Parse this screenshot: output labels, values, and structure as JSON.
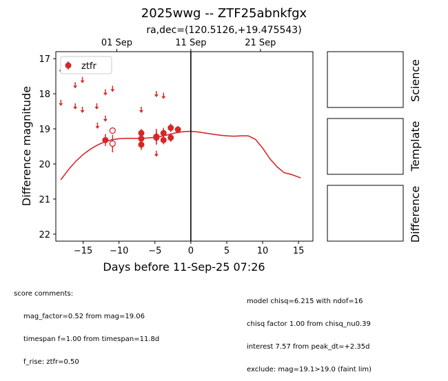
{
  "page_title": "2025wwg -- ZTF25abnkfgx",
  "page_subtitle": "ra,dec=(120.5126,+19.475543)",
  "chart_data": {
    "type": "scatter",
    "xlabel": "Days before 11-Sep-25 07:26",
    "ylabel": "Difference magnitude",
    "xlim": [
      -18.8,
      17.0
    ],
    "ylim": [
      22.2,
      16.8
    ],
    "y_inverted": true,
    "x_ticks": [
      -15,
      -10,
      -5,
      0,
      5,
      10,
      15
    ],
    "x_tick_labels": [
      "−15",
      "−10",
      "−5",
      "0",
      "5",
      "10",
      "15"
    ],
    "y_ticks": [
      17,
      18,
      19,
      20,
      21,
      22
    ],
    "y_tick_labels": [
      "17",
      "18",
      "19",
      "20",
      "21",
      "22"
    ],
    "top_axis": {
      "ticks": [
        -10.31,
        0.0,
        9.69
      ],
      "labels": [
        "01 Sep",
        "11 Sep",
        "21 Sep"
      ]
    },
    "reference_line_x": 0,
    "legend": {
      "placement": "top-left",
      "entries": [
        {
          "name": "ztfr",
          "color": "#d62728"
        }
      ]
    },
    "series_color": "#d62728",
    "detections": [
      {
        "x": -11.9,
        "y": 19.32,
        "err": 0.17
      },
      {
        "x": -6.9,
        "y": 19.12,
        "err": 0.12
      },
      {
        "x": -6.9,
        "y": 19.28,
        "err": 0.12
      },
      {
        "x": -6.9,
        "y": 19.45,
        "err": 0.15
      },
      {
        "x": -4.8,
        "y": 19.22,
        "err": 0.22
      },
      {
        "x": -4.8,
        "y": 19.25,
        "err": 0.2
      },
      {
        "x": -3.8,
        "y": 19.12,
        "err": 0.15
      },
      {
        "x": -3.8,
        "y": 19.32,
        "err": 0.12
      },
      {
        "x": -2.8,
        "y": 18.97,
        "err": 0.12
      },
      {
        "x": -2.8,
        "y": 19.25,
        "err": 0.12
      },
      {
        "x": -1.8,
        "y": 19.02,
        "err": 0.1
      }
    ],
    "open_points": [
      {
        "x": -10.9,
        "y": 19.05,
        "err": 0.0
      },
      {
        "x": -10.9,
        "y": 19.42,
        "err": 0.25
      }
    ],
    "upper_limits": [
      {
        "x": -18.1,
        "y": 17.3
      },
      {
        "x": -18.1,
        "y": 18.25
      },
      {
        "x": -16.1,
        "y": 17.75
      },
      {
        "x": -16.1,
        "y": 18.35
      },
      {
        "x": -15.1,
        "y": 17.6
      },
      {
        "x": -15.1,
        "y": 18.45
      },
      {
        "x": -13.1,
        "y": 18.35
      },
      {
        "x": -13.0,
        "y": 18.9
      },
      {
        "x": -11.9,
        "y": 17.95
      },
      {
        "x": -11.9,
        "y": 18.7
      },
      {
        "x": -10.9,
        "y": 17.85
      },
      {
        "x": -6.9,
        "y": 18.45
      },
      {
        "x": -4.8,
        "y": 18.0
      },
      {
        "x": -4.8,
        "y": 19.7
      },
      {
        "x": -3.8,
        "y": 18.05
      }
    ],
    "model_curve": {
      "x": [
        -18.1,
        -17,
        -16,
        -15,
        -14,
        -13,
        -12,
        -11,
        -10,
        -9,
        -8,
        -7,
        -6,
        -5,
        -4,
        -3,
        -2,
        -1,
        0,
        1,
        2,
        3,
        4,
        5,
        6,
        7,
        8,
        9,
        10,
        11,
        12,
        13,
        14,
        15.3
      ],
      "y": [
        20.45,
        20.15,
        19.92,
        19.73,
        19.58,
        19.46,
        19.37,
        19.31,
        19.28,
        19.27,
        19.27,
        19.27,
        19.26,
        19.24,
        19.21,
        19.16,
        19.11,
        19.08,
        19.07,
        19.09,
        19.12,
        19.15,
        19.18,
        19.2,
        19.21,
        19.2,
        19.2,
        19.3,
        19.55,
        19.85,
        20.08,
        20.25,
        20.3,
        20.4
      ]
    }
  },
  "cutouts": [
    {
      "label": "Science"
    },
    {
      "label": "Template"
    },
    {
      "label": "Difference"
    }
  ],
  "score_comments": {
    "header": "score comments:",
    "lines": [
      "mag_factor=0.52 from mag=19.06",
      "timespan f=1.00 from timespan=11.8d",
      "f_rise: ztfr=0.50"
    ]
  },
  "model_info": {
    "lines": [
      "model chisq=6.215 with ndof=16",
      "chisq factor 1.00 from chisq_nu0.39",
      "interest 7.57 from peak_dt=+2.35d",
      "exclude: mag=19.1>19.0 (faint lim)"
    ]
  }
}
